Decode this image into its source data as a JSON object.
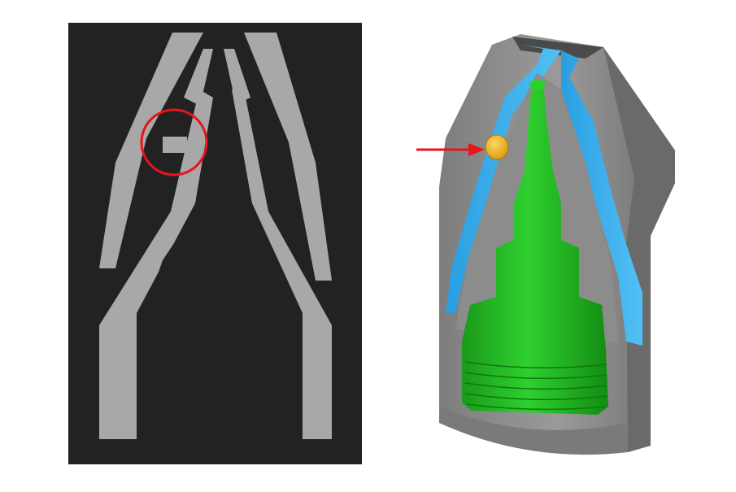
{
  "figure": {
    "left_panel": {
      "kind": "ct-slice-grayscale",
      "background_color": "#2a2a2a",
      "material_color": "#cfcfcf",
      "highlight": {
        "shape": "circle",
        "color": "#e8141c"
      }
    },
    "right_panel": {
      "kind": "3d-cutaway-render",
      "colors": {
        "body": "#8a8a8a",
        "gap_channel": "#3fb0ef",
        "core": "#22bb22",
        "particle": "#f0b820",
        "arrow": "#e8141c"
      }
    }
  }
}
